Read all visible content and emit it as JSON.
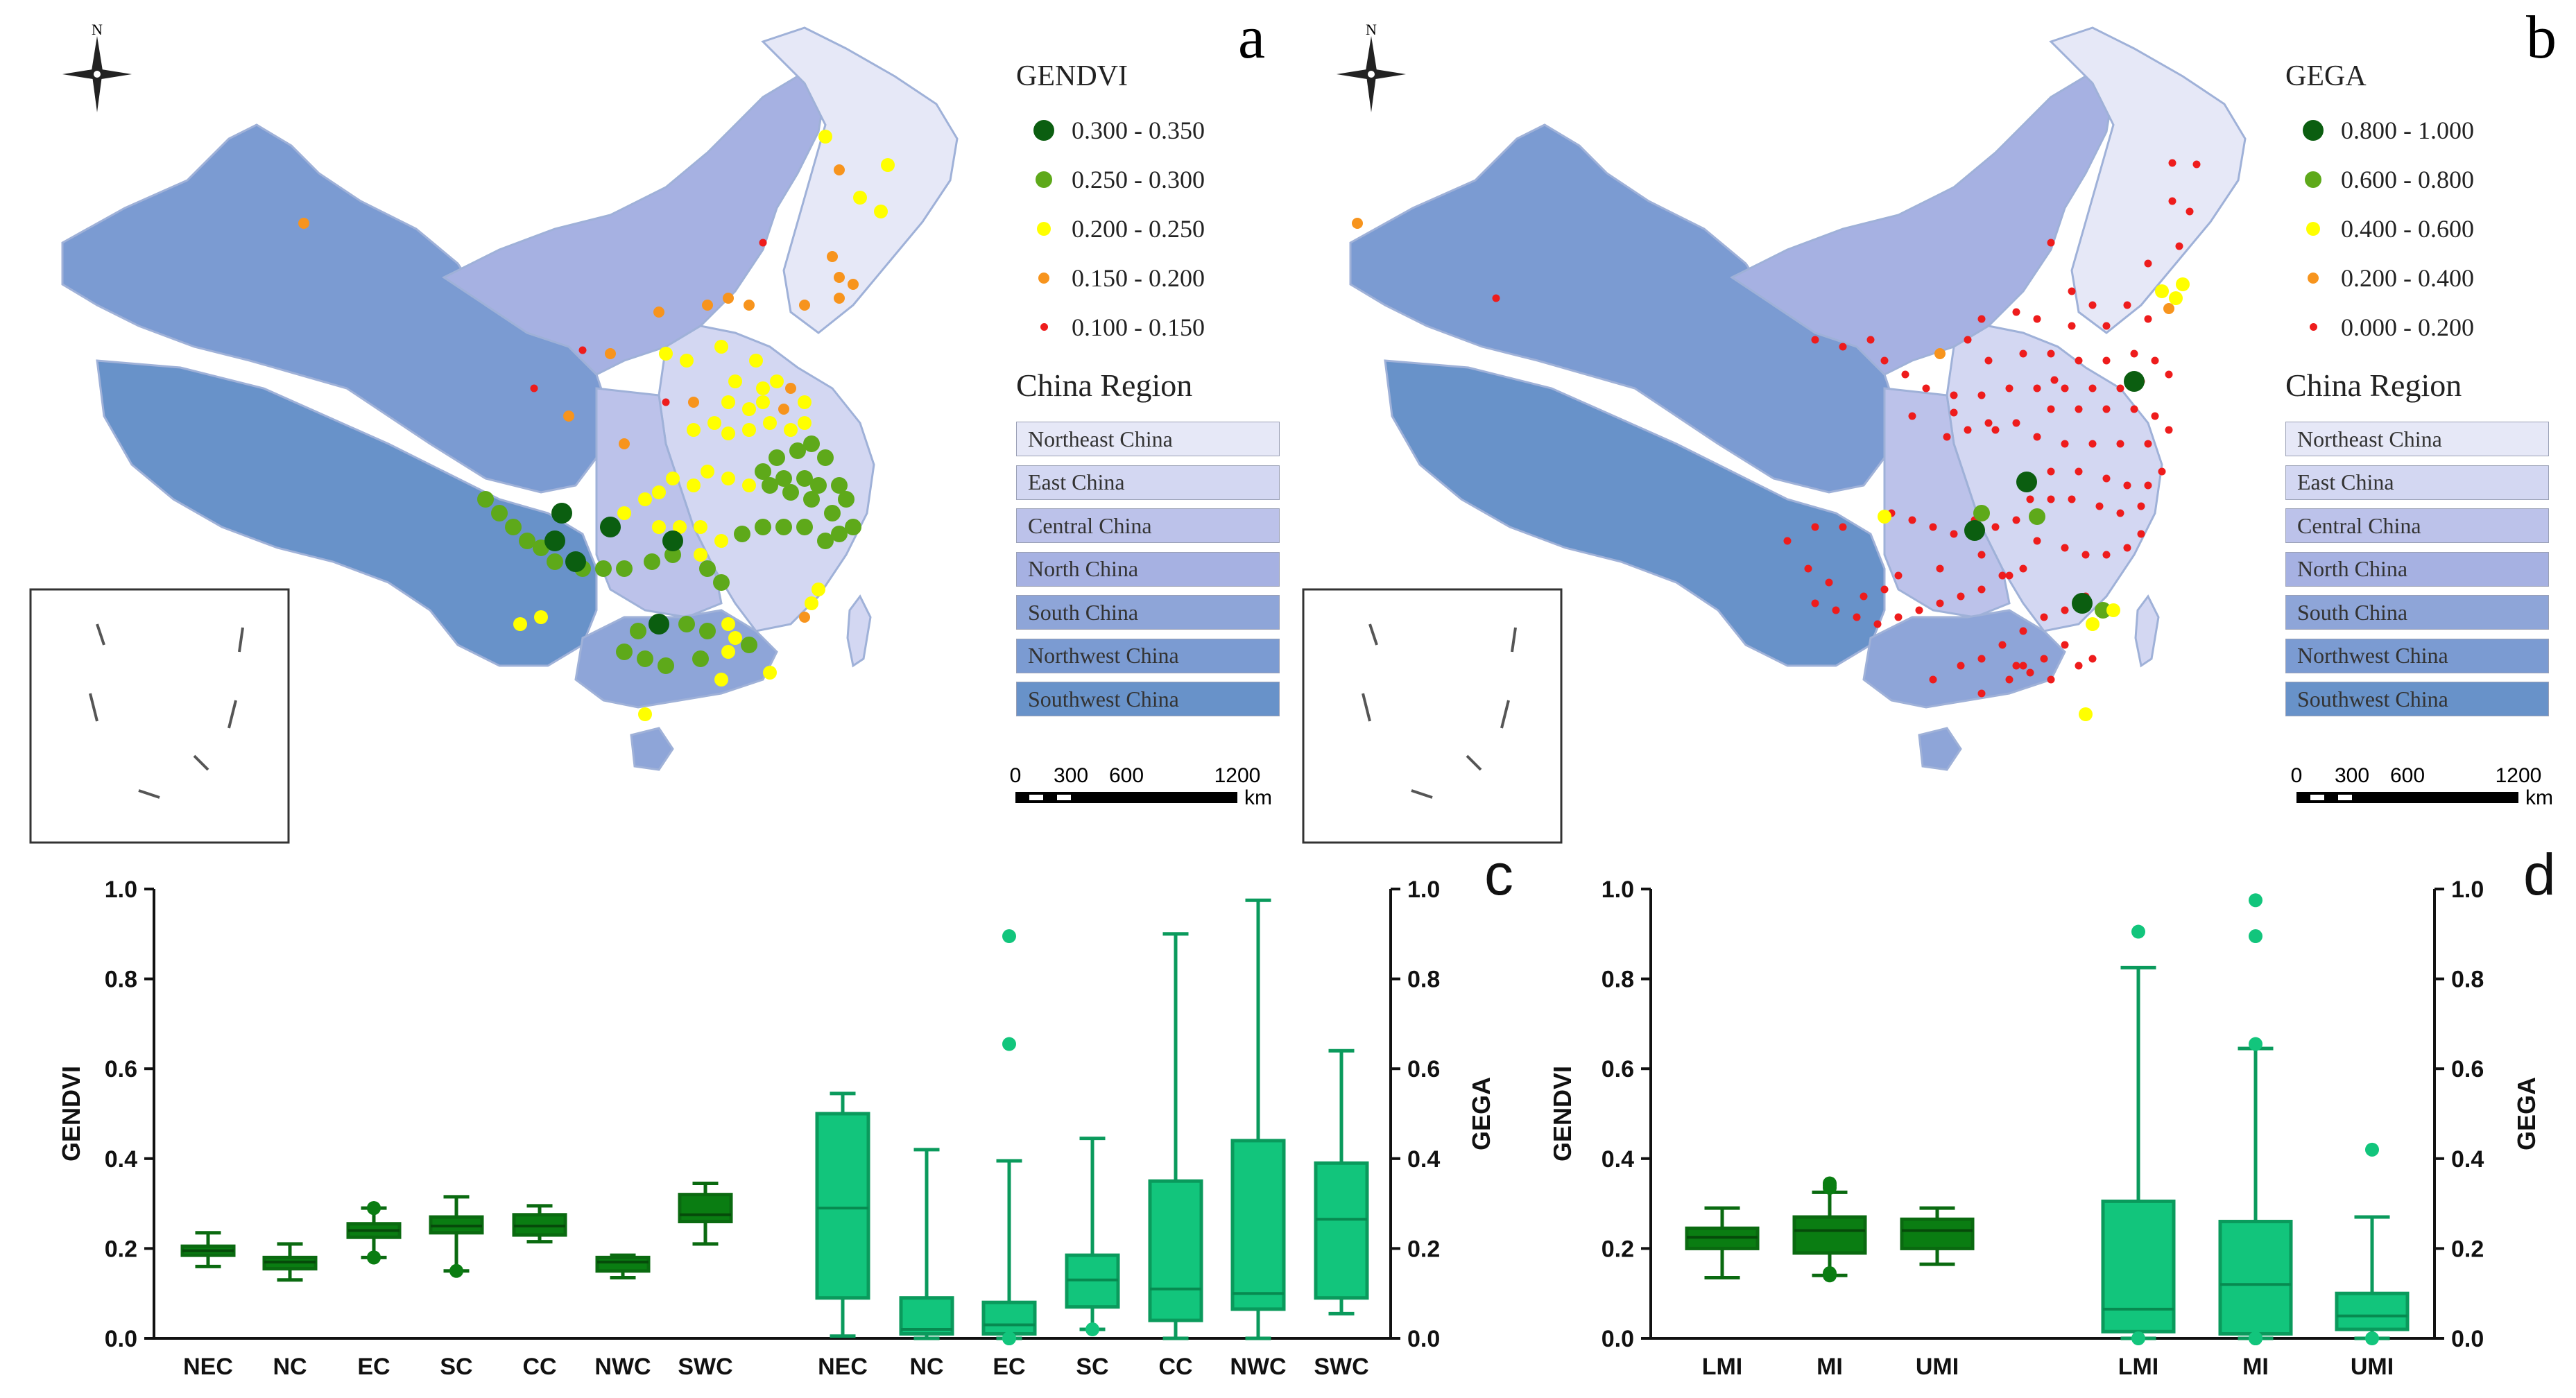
{
  "maps": [
    {
      "panel_label": "a",
      "north": "N",
      "legend_title": "GENDVI",
      "legend_items": [
        {
          "label": "0.300  -  0.350",
          "color": "#0b5e10",
          "size": 30
        },
        {
          "label": "0.250  -  0.300",
          "color": "#5ea91a",
          "size": 24
        },
        {
          "label": "0.200  -  0.250",
          "color": "#ffff00",
          "size": 20
        },
        {
          "label": "0.150  -  0.200",
          "color": "#f7941d",
          "size": 16
        },
        {
          "label": "0.100  -  0.150",
          "color": "#ee1c1c",
          "size": 11
        }
      ],
      "region_title": "China Region",
      "regions": [
        {
          "label": "Northeast China",
          "color": "#e6e8f7"
        },
        {
          "label": "East China",
          "color": "#d3d7f2"
        },
        {
          "label": "Central China",
          "color": "#bcc2ea"
        },
        {
          "label": "North China",
          "color": "#a6b1e2"
        },
        {
          "label": "South China",
          "color": "#8ea5d8"
        },
        {
          "label": "Northwest China",
          "color": "#7b9bd2"
        },
        {
          "label": "Southwest China",
          "color": "#6892c9"
        }
      ],
      "scale_ticks": [
        "0",
        "300",
        "600",
        "1200"
      ],
      "scale_unit": "km"
    },
    {
      "panel_label": "b",
      "north": "N",
      "legend_title": "GEGA",
      "legend_items": [
        {
          "label": "0.800  -  1.000",
          "color": "#0b5e10",
          "size": 30
        },
        {
          "label": "0.600  -  0.800",
          "color": "#5ea91a",
          "size": 24
        },
        {
          "label": "0.400  -  0.600",
          "color": "#ffff00",
          "size": 20
        },
        {
          "label": "0.200  -  0.400",
          "color": "#f7941d",
          "size": 16
        },
        {
          "label": "0.000  -  0.200",
          "color": "#ee1c1c",
          "size": 11
        }
      ],
      "region_title": "China Region",
      "regions": [
        {
          "label": "Northeast China",
          "color": "#e6e8f7"
        },
        {
          "label": "East China",
          "color": "#d3d7f2"
        },
        {
          "label": "Central China",
          "color": "#bcc2ea"
        },
        {
          "label": "North China",
          "color": "#a6b1e2"
        },
        {
          "label": "South China",
          "color": "#8ea5d8"
        },
        {
          "label": "Northwest China",
          "color": "#7b9bd2"
        },
        {
          "label": "Southwest China",
          "color": "#6892c9"
        }
      ],
      "scale_ticks": [
        "0",
        "300",
        "600",
        "1200"
      ],
      "scale_unit": "km"
    }
  ],
  "chart_data": [
    {
      "panel_label": "c",
      "type": "box",
      "ylabel_left": "GENDVI",
      "ylabel_right": "GEGA",
      "ylim": [
        0,
        1.0
      ],
      "yticks": [
        "0.0",
        "0.2",
        "0.4",
        "0.6",
        "0.8",
        "1.0"
      ],
      "colors": {
        "GENDVI": "#0a7d12",
        "GEGA": "#12c57c",
        "GEGA_stroke": "#0a9a5c"
      },
      "groups": [
        {
          "series": "GENDVI",
          "category": "NEC",
          "min": 0.16,
          "q1": 0.185,
          "median": 0.195,
          "q3": 0.205,
          "max": 0.235,
          "outliers": []
        },
        {
          "series": "GENDVI",
          "category": "NC",
          "min": 0.13,
          "q1": 0.155,
          "median": 0.17,
          "q3": 0.18,
          "max": 0.21,
          "outliers": []
        },
        {
          "series": "GENDVI",
          "category": "EC",
          "min": 0.18,
          "q1": 0.225,
          "median": 0.24,
          "q3": 0.255,
          "max": 0.29,
          "outliers": [
            0.18,
            0.18,
            0.29,
            0.29
          ]
        },
        {
          "series": "GENDVI",
          "category": "SC",
          "min": 0.15,
          "q1": 0.235,
          "median": 0.25,
          "q3": 0.27,
          "max": 0.315,
          "outliers": [
            0.15
          ]
        },
        {
          "series": "GENDVI",
          "category": "CC",
          "min": 0.215,
          "q1": 0.23,
          "median": 0.25,
          "q3": 0.275,
          "max": 0.295,
          "outliers": []
        },
        {
          "series": "GENDVI",
          "category": "NWC",
          "min": 0.135,
          "q1": 0.15,
          "median": 0.17,
          "q3": 0.18,
          "max": 0.185,
          "outliers": []
        },
        {
          "series": "GENDVI",
          "category": "SWC",
          "min": 0.21,
          "q1": 0.26,
          "median": 0.275,
          "q3": 0.32,
          "max": 0.345,
          "outliers": []
        },
        {
          "series": "GEGA",
          "category": "NEC",
          "min": 0.005,
          "q1": 0.09,
          "median": 0.29,
          "q3": 0.5,
          "max": 0.545,
          "outliers": []
        },
        {
          "series": "GEGA",
          "category": "NC",
          "min": 0.0,
          "q1": 0.01,
          "median": 0.02,
          "q3": 0.09,
          "max": 0.42,
          "outliers": []
        },
        {
          "series": "GEGA",
          "category": "EC",
          "min": 0.0,
          "q1": 0.01,
          "median": 0.03,
          "q3": 0.08,
          "max": 0.395,
          "outliers": [
            0.655,
            0.895,
            0.0,
            0.0
          ]
        },
        {
          "series": "GEGA",
          "category": "SC",
          "min": 0.02,
          "q1": 0.07,
          "median": 0.13,
          "q3": 0.185,
          "max": 0.445,
          "outliers": [
            0.02
          ]
        },
        {
          "series": "GEGA",
          "category": "CC",
          "min": 0.0,
          "q1": 0.04,
          "median": 0.11,
          "q3": 0.35,
          "max": 0.9,
          "outliers": []
        },
        {
          "series": "GEGA",
          "category": "NWC",
          "min": 0.0,
          "q1": 0.065,
          "median": 0.1,
          "q3": 0.44,
          "max": 0.975,
          "outliers": []
        },
        {
          "series": "GEGA",
          "category": "SWC",
          "min": 0.055,
          "q1": 0.09,
          "median": 0.265,
          "q3": 0.39,
          "max": 0.64,
          "outliers": []
        }
      ]
    },
    {
      "panel_label": "d",
      "type": "box",
      "ylabel_left": "GENDVI",
      "ylabel_right": "GEGA",
      "ylim": [
        0,
        1.0
      ],
      "yticks": [
        "0.0",
        "0.2",
        "0.4",
        "0.6",
        "0.8",
        "1.0"
      ],
      "colors": {
        "GENDVI": "#0a7d12",
        "GEGA": "#12c57c",
        "GEGA_stroke": "#0a9a5c"
      },
      "groups": [
        {
          "series": "GENDVI",
          "category": "LMI",
          "min": 0.135,
          "q1": 0.2,
          "median": 0.225,
          "q3": 0.245,
          "max": 0.29,
          "outliers": []
        },
        {
          "series": "GENDVI",
          "category": "MI",
          "min": 0.14,
          "q1": 0.19,
          "median": 0.24,
          "q3": 0.27,
          "max": 0.325,
          "outliers": [
            0.14,
            0.145,
            0.335,
            0.34,
            0.345
          ]
        },
        {
          "series": "GENDVI",
          "category": "UMI",
          "min": 0.165,
          "q1": 0.2,
          "median": 0.24,
          "q3": 0.265,
          "max": 0.29,
          "outliers": []
        },
        {
          "series": "GEGA",
          "category": "LMI",
          "min": 0.0,
          "q1": 0.015,
          "median": 0.065,
          "q3": 0.305,
          "max": 0.825,
          "outliers": [
            0.905,
            0.0
          ]
        },
        {
          "series": "GEGA",
          "category": "MI",
          "min": 0.0,
          "q1": 0.01,
          "median": 0.12,
          "q3": 0.26,
          "max": 0.645,
          "outliers": [
            0.655,
            0.895,
            0.975,
            0.0,
            0.0,
            0.0
          ]
        },
        {
          "series": "GEGA",
          "category": "UMI",
          "min": 0.0,
          "q1": 0.02,
          "median": 0.05,
          "q3": 0.1,
          "max": 0.27,
          "outliers": [
            0.42,
            0.0
          ]
        }
      ]
    }
  ]
}
